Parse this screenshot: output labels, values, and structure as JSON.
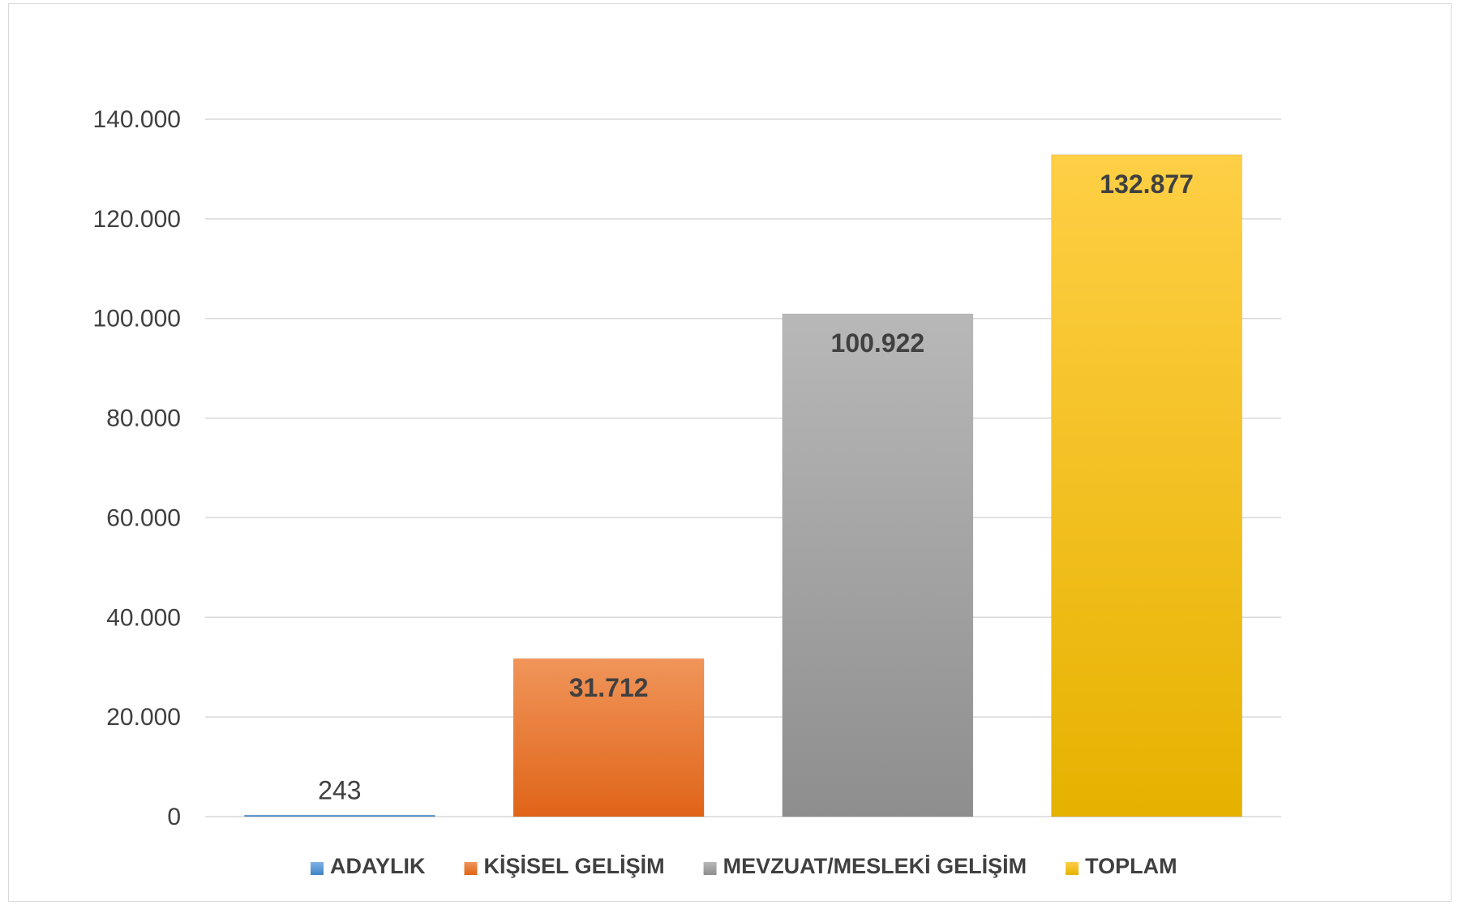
{
  "chart_data": {
    "type": "bar",
    "categories": [
      "ADAYLIK",
      "KİŞİSEL GELİŞİM",
      "MEVZUAT/MESLEKİ GELİŞİM",
      "TOPLAM"
    ],
    "values": [
      243,
      31712,
      100922,
      132877
    ],
    "data_labels": [
      "243",
      "31.712",
      "100.922",
      "132.877"
    ],
    "ylim": [
      0,
      140000
    ],
    "yticks": [
      0,
      20000,
      40000,
      60000,
      80000,
      100000,
      120000,
      140000
    ],
    "ytick_labels": [
      "0",
      "20.000",
      "40.000",
      "60.000",
      "80.000",
      "100.000",
      "120.000",
      "140.000"
    ],
    "colors": [
      "#5b9bd5",
      "#ed7d31",
      "#a5a5a5",
      "#ffc000"
    ],
    "gradients": [
      [
        "#7fb2e5",
        "#3f84c4"
      ],
      [
        "#f0955a",
        "#e06418"
      ],
      [
        "#b8b8b8",
        "#8e8e8e"
      ],
      [
        "#ffcf45",
        "#e6b200"
      ]
    ],
    "grid": true,
    "legend": "bottom",
    "title": "",
    "xlabel": "",
    "ylabel": ""
  }
}
